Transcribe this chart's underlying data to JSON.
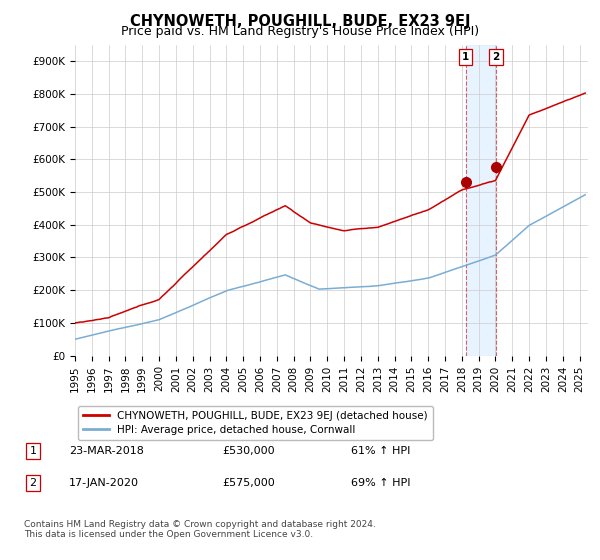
{
  "title": "CHYNOWETH, POUGHILL, BUDE, EX23 9EJ",
  "subtitle": "Price paid vs. HM Land Registry's House Price Index (HPI)",
  "ylabel_ticks": [
    "£0",
    "£100K",
    "£200K",
    "£300K",
    "£400K",
    "£500K",
    "£600K",
    "£700K",
    "£800K",
    "£900K"
  ],
  "ytick_values": [
    0,
    100000,
    200000,
    300000,
    400000,
    500000,
    600000,
    700000,
    800000,
    900000
  ],
  "ylim": [
    0,
    950000
  ],
  "xlim_start": 1995.0,
  "xlim_end": 2025.5,
  "sale1_date": 2018.22,
  "sale1_price": 530000,
  "sale2_date": 2020.04,
  "sale2_price": 575000,
  "red_line_color": "#cc0000",
  "blue_line_color": "#7aadd4",
  "sale_dot_color": "#aa0000",
  "vline_color": "#cc0000",
  "shade_color": "#ddeeff",
  "grid_color": "#cccccc",
  "background_color": "#ffffff",
  "legend_label_red": "CHYNOWETH, POUGHILL, BUDE, EX23 9EJ (detached house)",
  "legend_label_blue": "HPI: Average price, detached house, Cornwall",
  "table_row1": [
    "1",
    "23-MAR-2018",
    "£530,000",
    "61% ↑ HPI"
  ],
  "table_row2": [
    "2",
    "17-JAN-2020",
    "£575,000",
    "69% ↑ HPI"
  ],
  "footnote": "Contains HM Land Registry data © Crown copyright and database right 2024.\nThis data is licensed under the Open Government Licence v3.0.",
  "title_fontsize": 10.5,
  "subtitle_fontsize": 9,
  "tick_fontsize": 7.5,
  "legend_fontsize": 7.5,
  "table_fontsize": 8,
  "footnote_fontsize": 6.5
}
